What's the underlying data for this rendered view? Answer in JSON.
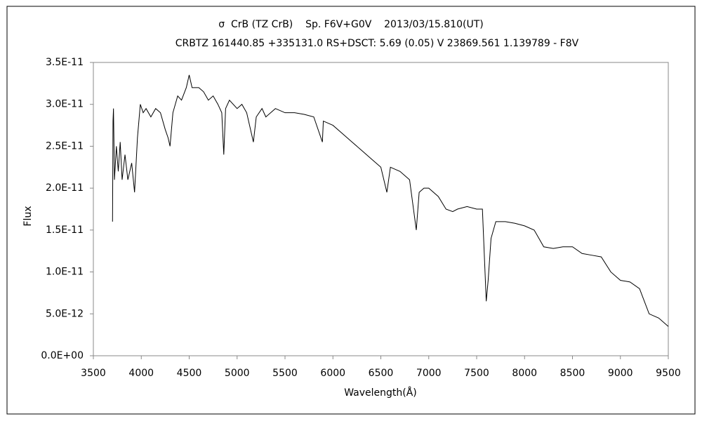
{
  "chart_data": {
    "type": "line",
    "title": "σ  CrB (TZ CrB)    Sp. F6V+G0V    2013/03/15.810(UT)",
    "subtitle": "CRBTZ 161440.85 +335131.0 RS+DSCT: 5.69 (0.05) V 23869.561 1.139789 - F8V",
    "x_label": "Wavelength(Å)",
    "y_label": "Flux",
    "x": [
      3700,
      3705,
      3710,
      3720,
      3740,
      3760,
      3780,
      3800,
      3830,
      3860,
      3900,
      3930,
      3960,
      3990,
      4020,
      4050,
      4100,
      4150,
      4200,
      4250,
      4280,
      4300,
      4330,
      4380,
      4420,
      4470,
      4500,
      4530,
      4600,
      4650,
      4700,
      4750,
      4800,
      4840,
      4861,
      4880,
      4920,
      5000,
      5050,
      5100,
      5170,
      5200,
      5260,
      5300,
      5400,
      5500,
      5600,
      5700,
      5800,
      5890,
      5900,
      6000,
      6100,
      6200,
      6300,
      6400,
      6500,
      6563,
      6600,
      6700,
      6800,
      6870,
      6900,
      6950,
      7000,
      7100,
      7180,
      7250,
      7300,
      7400,
      7500,
      7560,
      7600,
      7620,
      7650,
      7700,
      7800,
      7900,
      8000,
      8100,
      8150,
      8200,
      8300,
      8400,
      8500,
      8600,
      8700,
      8800,
      8900,
      9000,
      9100,
      9200,
      9300,
      9400,
      9500
    ],
    "series": [
      {
        "name": "Flux",
        "color": "#000000",
        "values": [
          1.6e-11,
          2.8e-11,
          2.95e-11,
          2.1e-11,
          2.5e-11,
          2.2e-11,
          2.55e-11,
          2.1e-11,
          2.4e-11,
          2.1e-11,
          2.3e-11,
          1.95e-11,
          2.6e-11,
          3e-11,
          2.9e-11,
          2.95e-11,
          2.85e-11,
          2.95e-11,
          2.9e-11,
          2.7e-11,
          2.6e-11,
          2.5e-11,
          2.9e-11,
          3.1e-11,
          3.05e-11,
          3.2e-11,
          3.35e-11,
          3.2e-11,
          3.2e-11,
          3.15e-11,
          3.05e-11,
          3.1e-11,
          3e-11,
          2.9e-11,
          2.4e-11,
          2.95e-11,
          3.05e-11,
          2.95e-11,
          3e-11,
          2.9e-11,
          2.55e-11,
          2.85e-11,
          2.95e-11,
          2.85e-11,
          2.95e-11,
          2.9e-11,
          2.9e-11,
          2.88e-11,
          2.85e-11,
          2.55e-11,
          2.8e-11,
          2.75e-11,
          2.65e-11,
          2.55e-11,
          2.45e-11,
          2.35e-11,
          2.25e-11,
          1.95e-11,
          2.25e-11,
          2.2e-11,
          2.1e-11,
          1.5e-11,
          1.95e-11,
          2e-11,
          2e-11,
          1.9e-11,
          1.75e-11,
          1.72e-11,
          1.75e-11,
          1.78e-11,
          1.75e-11,
          1.75e-11,
          6.5e-12,
          9e-12,
          1.4e-11,
          1.6e-11,
          1.6e-11,
          1.58e-11,
          1.55e-11,
          1.5e-11,
          1.4e-11,
          1.3e-11,
          1.28e-11,
          1.3e-11,
          1.3e-11,
          1.22e-11,
          1.2e-11,
          1.18e-11,
          1e-11,
          9e-12,
          8.8e-12,
          8e-12,
          5e-12,
          4.5e-12,
          3.5e-12
        ]
      }
    ],
    "xlim": [
      3500,
      9500
    ],
    "xticks": [
      3500,
      4000,
      4500,
      5000,
      5500,
      6000,
      6500,
      7000,
      7500,
      8000,
      8500,
      9000,
      9500
    ],
    "ylim": [
      0,
      3.5e-11
    ],
    "yticks": [
      {
        "value": 0,
        "label": "0.0E+00"
      },
      {
        "value": 5e-12,
        "label": "5.0E-12"
      },
      {
        "value": 1e-11,
        "label": "1.0E-11"
      },
      {
        "value": 1.5e-11,
        "label": "1.5E-11"
      },
      {
        "value": 2e-11,
        "label": "2.0E-11"
      },
      {
        "value": 2.5e-11,
        "label": "2.5E-11"
      },
      {
        "value": 3e-11,
        "label": "3.0E-11"
      },
      {
        "value": 3.5e-11,
        "label": "3.5E-11"
      }
    ],
    "grid": false
  }
}
